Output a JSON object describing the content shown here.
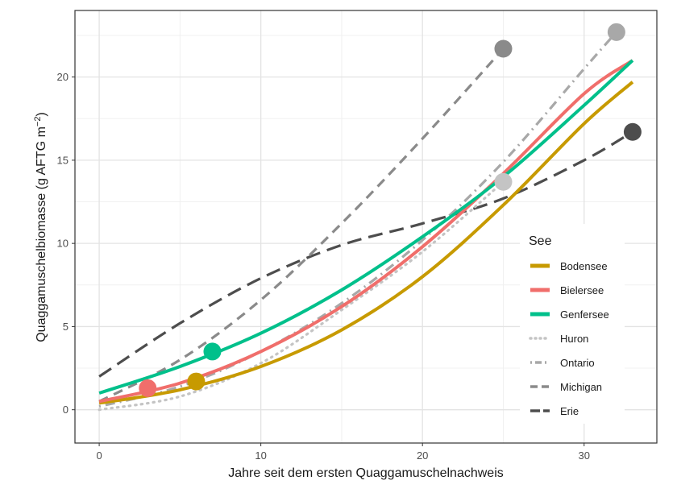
{
  "chart_data": {
    "type": "line",
    "xlabel": "Jahre seit dem ersten Quaggamuschelnachweis",
    "ylabel": "Quaggamuschelbiomasse (g AFTG m",
    "ylabel_sup": "−2",
    "ylabel_end": ")",
    "xlim": [
      -1.5,
      34.5
    ],
    "ylim": [
      -2.0,
      24.0
    ],
    "x_ticks": [
      0,
      10,
      20,
      30
    ],
    "x_tick_labels": [
      "0",
      "10",
      "20",
      "30"
    ],
    "y_ticks": [
      0,
      5,
      10,
      15,
      20
    ],
    "y_tick_labels": [
      "0",
      "5",
      "10",
      "15",
      "20"
    ],
    "x_minor_ticks": [
      5,
      15,
      25
    ],
    "y_minor_ticks": [
      2.5,
      7.5,
      12.5,
      17.5,
      22.5
    ],
    "grid": true,
    "legend": {
      "title": "See",
      "position": "right-inside"
    },
    "series": [
      {
        "name": "Bodensee",
        "color": "#C79A00",
        "style": "solid",
        "x": [
          0,
          5,
          10,
          15,
          20,
          25,
          30,
          33
        ],
        "y": [
          0.4,
          1.2,
          2.6,
          4.8,
          8.0,
          12.3,
          17.2,
          19.7
        ],
        "point": [
          6,
          1.7
        ]
      },
      {
        "name": "Bielersee",
        "color": "#F06E6B",
        "style": "solid",
        "x": [
          0,
          5,
          10,
          15,
          20,
          25,
          30,
          33
        ],
        "y": [
          0.5,
          1.6,
          3.5,
          6.2,
          9.8,
          14.2,
          19.0,
          21.0
        ],
        "point": [
          3,
          1.3
        ]
      },
      {
        "name": "Genfersee",
        "color": "#00C08B",
        "style": "solid",
        "x": [
          0,
          5,
          10,
          15,
          20,
          25,
          30,
          33
        ],
        "y": [
          1.0,
          2.6,
          4.6,
          7.2,
          10.4,
          14.0,
          18.3,
          21.0
        ],
        "point": [
          7,
          3.5
        ]
      },
      {
        "name": "Huron",
        "color": "#C4C4C4",
        "style": "dotted",
        "x": [
          0,
          5,
          10,
          15,
          20,
          25
        ],
        "y": [
          0.0,
          0.8,
          2.8,
          6.0,
          9.5,
          13.7
        ],
        "point": [
          25,
          13.7
        ]
      },
      {
        "name": "Ontario",
        "color": "#A8A8A8",
        "style": "dotdash",
        "x": [
          0,
          5,
          10,
          15,
          20,
          25,
          30,
          32
        ],
        "y": [
          0.2,
          1.4,
          3.5,
          6.4,
          10.2,
          14.9,
          20.5,
          22.7
        ],
        "point": [
          32,
          22.7
        ]
      },
      {
        "name": "Michigan",
        "color": "#8A8A8A",
        "style": "dashed",
        "x": [
          0,
          5,
          10,
          15,
          20,
          25
        ],
        "y": [
          0.5,
          3.0,
          6.6,
          11.2,
          16.3,
          21.7
        ],
        "point": [
          25,
          21.7
        ]
      },
      {
        "name": "Erie",
        "color": "#4D4D4D",
        "style": "longdash",
        "x": [
          0,
          5,
          10,
          15,
          20,
          25,
          30,
          33
        ],
        "y": [
          2.0,
          5.2,
          7.9,
          9.9,
          11.2,
          12.7,
          15.0,
          16.7
        ],
        "point": [
          33,
          16.7
        ]
      }
    ]
  }
}
